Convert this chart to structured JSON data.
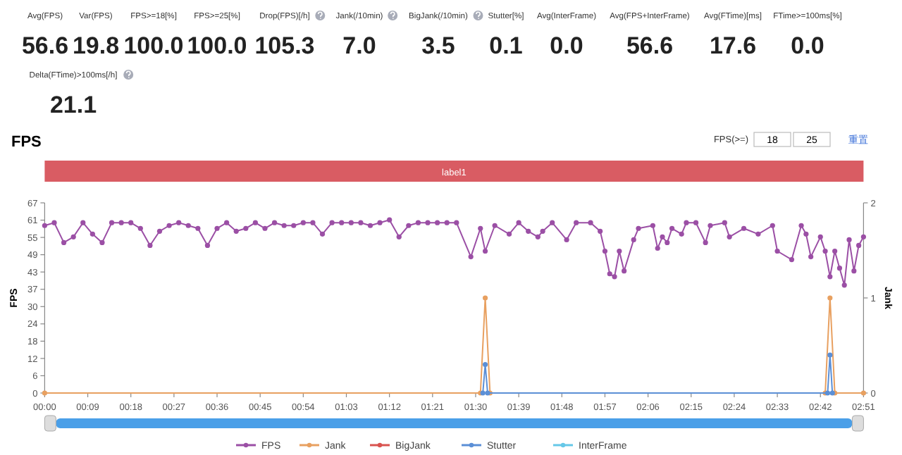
{
  "chart_data": [
    {
      "type": "other",
      "annotations": [
        "Avg(FPS)",
        "56.6",
        "Var(FPS)",
        "19.8",
        "FPS>=18[%]",
        "100.0",
        "FPS>=25[%]",
        "100.0",
        "Drop(FPS)[/h]",
        "105.3",
        "Jank(/10min)",
        "7.0",
        "BigJank(/10min)",
        "3.5",
        "Stutter[%]",
        "0.1",
        "Avg(InterFrame)",
        "0.0",
        "Avg(FPS+InterFrame)",
        "56.6",
        "Avg(FTime)[ms]",
        "17.6",
        "FTime>=100ms[%]",
        "0.0",
        "Delta(FTime)>100ms[/h]",
        "21.1"
      ]
    },
    {
      "type": "line",
      "title": "FPS",
      "ylabel": "FPS",
      "y2label": "Jank",
      "annotations": [
        "FPS(>=)",
        "18",
        "25",
        "重置",
        "label1"
      ],
      "xlim": [
        0,
        171
      ],
      "xticks": [
        {
          "value": 0,
          "label": "00:00"
        },
        {
          "value": 9,
          "label": "00:09"
        },
        {
          "value": 18,
          "label": "00:18"
        },
        {
          "value": 27,
          "label": "00:27"
        },
        {
          "value": 36,
          "label": "00:36"
        },
        {
          "value": 45,
          "label": "00:45"
        },
        {
          "value": 54,
          "label": "00:54"
        },
        {
          "value": 63,
          "label": "01:03"
        },
        {
          "value": 72,
          "label": "01:12"
        },
        {
          "value": 81,
          "label": "01:21"
        },
        {
          "value": 90,
          "label": "01:30"
        },
        {
          "value": 99,
          "label": "01:39"
        },
        {
          "value": 108,
          "label": "01:48"
        },
        {
          "value": 117,
          "label": "01:57"
        },
        {
          "value": 126,
          "label": "02:06"
        },
        {
          "value": 135,
          "label": "02:15"
        },
        {
          "value": 144,
          "label": "02:24"
        },
        {
          "value": 153,
          "label": "02:33"
        },
        {
          "value": 162,
          "label": "02:42"
        },
        {
          "value": 171,
          "label": "02:51"
        }
      ],
      "ylim": [
        0,
        67
      ],
      "yticks": [
        0,
        {
          "value": 6.09,
          "label": "6"
        },
        {
          "value": 12.18,
          "label": "12"
        },
        {
          "value": 18.27,
          "label": "18"
        },
        {
          "value": 24.36,
          "label": "24"
        },
        {
          "value": 30.45,
          "label": "30"
        },
        {
          "value": 36.55,
          "label": "37"
        },
        {
          "value": 42.64,
          "label": "43"
        },
        {
          "value": 48.73,
          "label": "49"
        },
        {
          "value": 54.82,
          "label": "55"
        },
        {
          "value": 60.91,
          "label": "61"
        },
        67
      ],
      "y2lim": [
        0,
        2
      ],
      "y2ticks": [
        0,
        1,
        2
      ],
      "grid": false,
      "legend": "bottom",
      "marker": "circle",
      "line_style": "solid",
      "series": [
        {
          "name": "FPS",
          "color": "#9b4fa5",
          "x": [
            0,
            2,
            4,
            6,
            8,
            10,
            12,
            14,
            16,
            18,
            20,
            22,
            24,
            26,
            28,
            30,
            32,
            34,
            36,
            38,
            40,
            42,
            44,
            46,
            48,
            50,
            52,
            54,
            56,
            58,
            60,
            62,
            64,
            66,
            68,
            70,
            72,
            74,
            76,
            78,
            80,
            82,
            84,
            86,
            89,
            91,
            92,
            94,
            97,
            99,
            101,
            103,
            104,
            106,
            109,
            111,
            114,
            116,
            117,
            118,
            119,
            120,
            121,
            123,
            124,
            127,
            128,
            129,
            130,
            131,
            133,
            134,
            136,
            138,
            139,
            142,
            143,
            146,
            149,
            152,
            153,
            156,
            158,
            159,
            160,
            162,
            163,
            164,
            165,
            166,
            167,
            168,
            169,
            170,
            171
          ],
          "values": [
            59,
            60,
            53,
            55,
            60,
            56,
            53,
            60,
            60,
            60,
            58,
            52,
            57,
            59,
            60,
            59,
            58,
            52,
            58,
            60,
            57,
            58,
            60,
            58,
            60,
            59,
            59,
            60,
            60,
            56,
            60,
            60,
            60,
            60,
            59,
            60,
            61,
            55,
            59,
            60,
            60,
            60,
            60,
            60,
            48,
            58,
            50,
            59,
            56,
            60,
            57,
            55,
            57,
            60,
            54,
            60,
            60,
            57,
            50,
            42,
            41,
            50,
            43,
            54,
            58,
            59,
            51,
            55,
            53,
            58,
            56,
            60,
            60,
            53,
            59,
            60,
            55,
            58,
            56,
            59,
            50,
            47,
            59,
            56,
            48,
            55,
            50,
            41,
            50,
            44,
            38,
            54,
            43,
            52,
            55
          ]
        },
        {
          "name": "Jank",
          "color": "#e8a060",
          "axis": "y2",
          "x": [
            0,
            91,
            92,
            93,
            163,
            164,
            165,
            171
          ],
          "values": [
            0,
            0,
            1,
            0,
            0,
            1,
            0,
            0
          ]
        },
        {
          "name": "BigJank",
          "color": "#d9534f",
          "axis": "y2"
        },
        {
          "name": "Stutter",
          "color": "#5b8fd6",
          "axis": "y2",
          "x": [
            91.5,
            92,
            92.5,
            163.5,
            164,
            164.5
          ],
          "values": [
            0,
            0.3,
            0,
            0,
            0.4,
            0
          ]
        },
        {
          "name": "InterFrame",
          "color": "#66c8e8",
          "axis": "y2"
        }
      ]
    }
  ]
}
